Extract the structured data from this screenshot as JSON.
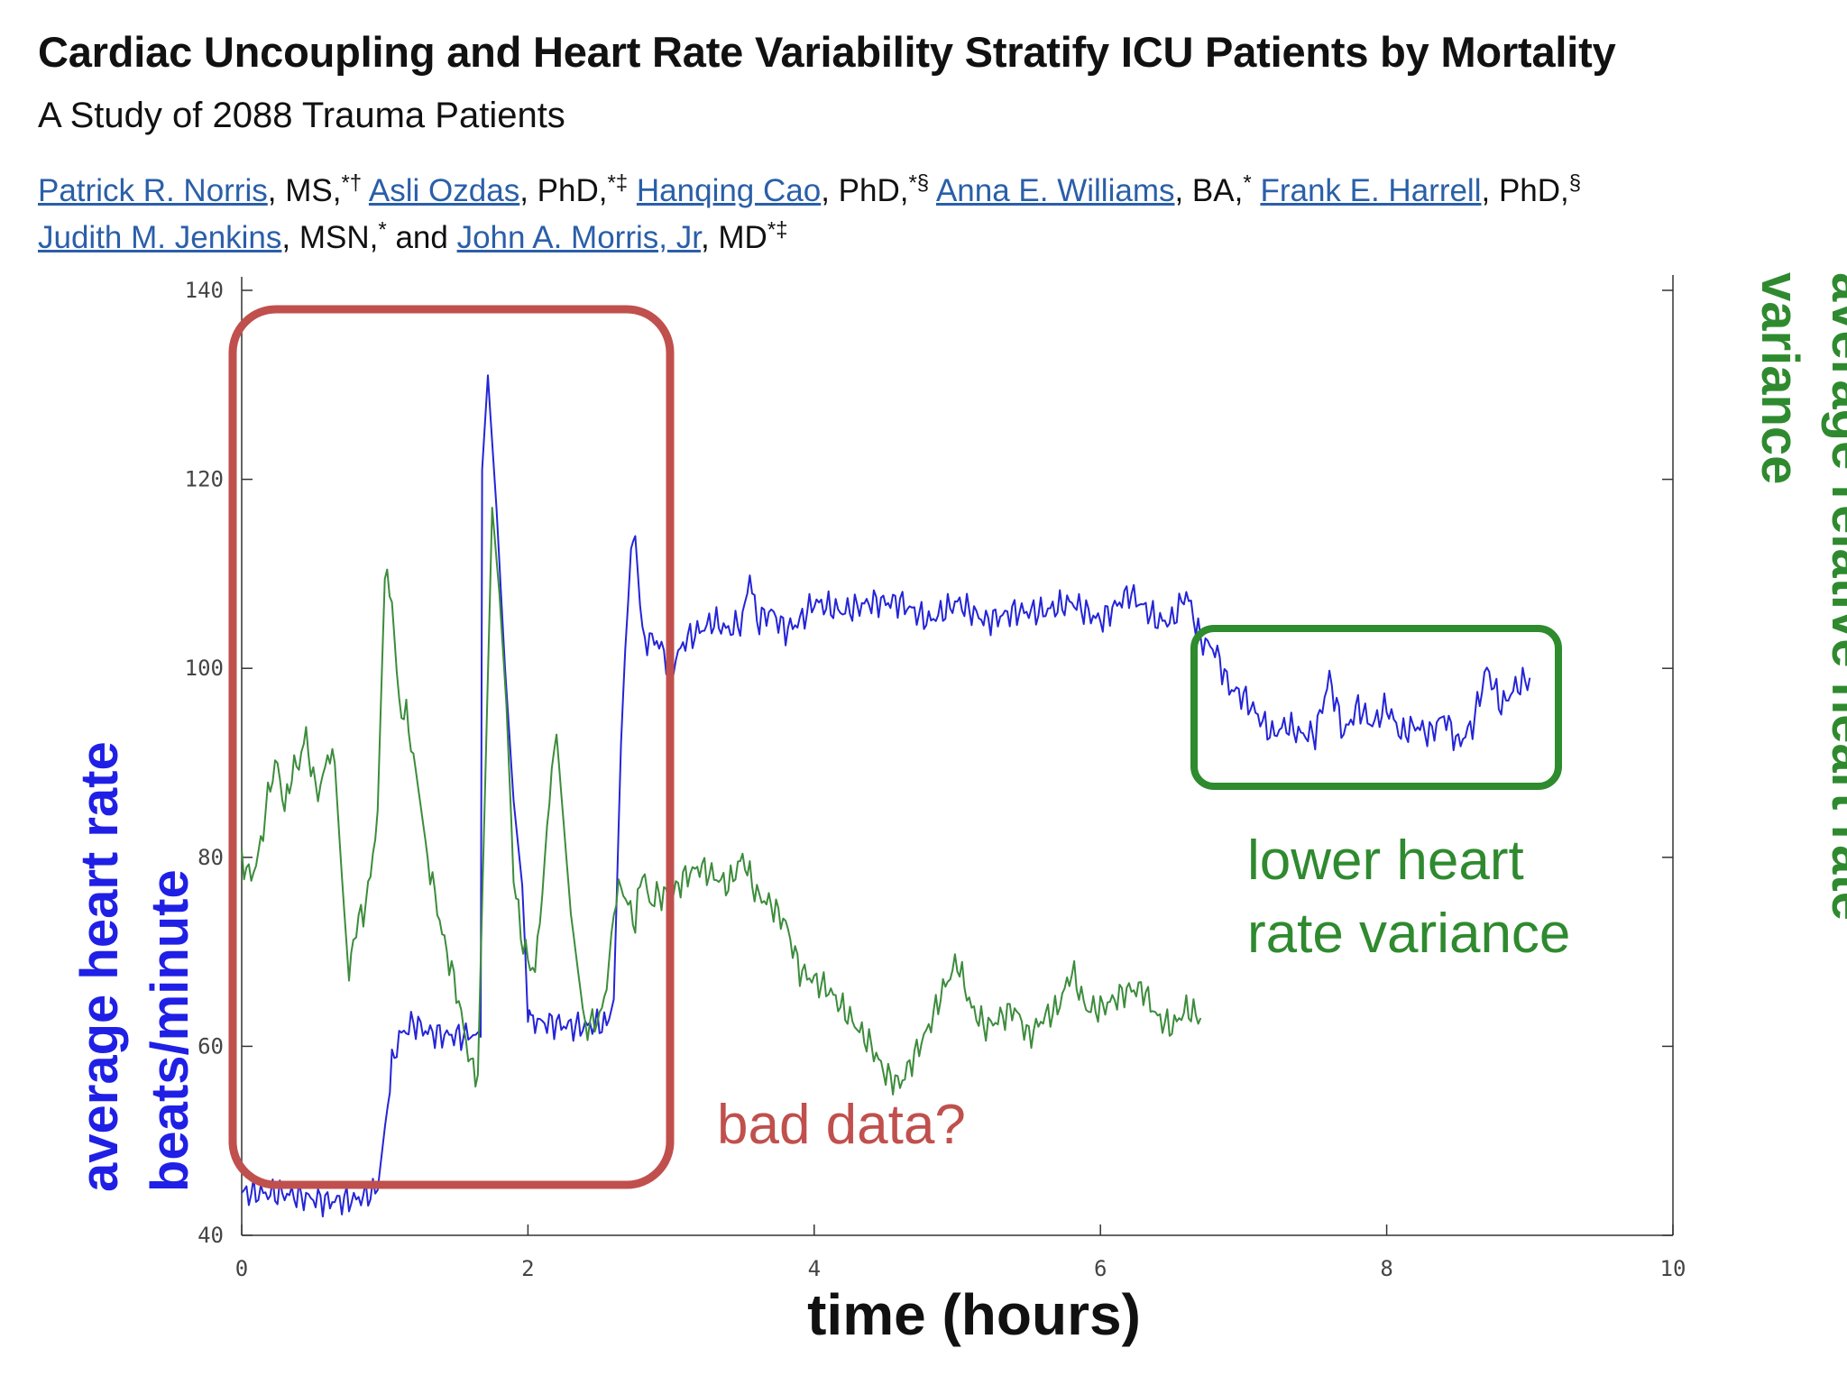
{
  "paper": {
    "title": "Cardiac Uncoupling and Heart Rate Variability Stratify ICU Patients by Mortality",
    "subtitle": "A Study of 2088 Trauma Patients",
    "authors": [
      {
        "name": "Patrick R. Norris",
        "degree": ", MS,",
        "marks": "*†"
      },
      {
        "name": "Asli Ozdas",
        "degree": ", PhD,",
        "marks": "*‡"
      },
      {
        "name": "Hanqing Cao",
        "degree": ", PhD,",
        "marks": "*§"
      },
      {
        "name": "Anna E. Williams",
        "degree": ", BA,",
        "marks": "*"
      },
      {
        "name": "Frank E. Harrell",
        "degree": ", PhD,",
        "marks": "§"
      },
      {
        "name": "Judith M. Jenkins",
        "degree": ", MSN,",
        "marks": "*"
      },
      {
        "name": "John A. Morris, Jr",
        "degree": ", MD",
        "marks": "*‡"
      }
    ],
    "and_word": "and"
  },
  "chart_data": {
    "type": "line",
    "x_range": [
      0,
      10
    ],
    "x_ticks": [
      "0",
      "2",
      "4",
      "6",
      "8",
      "10"
    ],
    "y_range": [
      40,
      140
    ],
    "y_ticks": [
      "40",
      "60",
      "80",
      "100",
      "120",
      "140"
    ],
    "xlabel": "time (hours)",
    "ylabel_left": [
      "average heart rate",
      "beats/minute"
    ],
    "ylabel_right": [
      "average relative heart rate",
      "variance"
    ],
    "series": [
      {
        "name": "average heart rate",
        "color": "#2424d8",
        "points": [
          [
            0,
            44.5
          ],
          [
            0.3,
            44.4
          ],
          [
            0.6,
            43.6
          ],
          [
            0.8,
            43.8
          ],
          [
            0.95,
            44.8
          ],
          [
            1.02,
            54
          ],
          [
            1.05,
            58
          ],
          [
            1.1,
            61
          ],
          [
            1.2,
            62.5
          ],
          [
            1.3,
            61.5
          ],
          [
            1.4,
            61.2
          ],
          [
            1.5,
            61.1
          ],
          [
            1.6,
            61.2
          ],
          [
            1.67,
            61
          ],
          [
            1.68,
            121
          ],
          [
            1.72,
            131
          ],
          [
            1.78,
            117
          ],
          [
            1.84,
            100
          ],
          [
            1.9,
            86
          ],
          [
            1.96,
            77
          ],
          [
            2.0,
            64
          ],
          [
            2.02,
            62.4
          ],
          [
            2.05,
            62.7
          ],
          [
            2.1,
            62.5
          ],
          [
            2.2,
            62.4
          ],
          [
            2.3,
            62.1
          ],
          [
            2.4,
            62.1
          ],
          [
            2.5,
            62.4
          ],
          [
            2.55,
            62.3
          ],
          [
            2.6,
            65
          ],
          [
            2.65,
            92
          ],
          [
            2.68,
            102
          ],
          [
            2.72,
            112
          ],
          [
            2.75,
            114
          ],
          [
            2.8,
            103
          ],
          [
            2.9,
            103
          ],
          [
            3.0,
            100
          ],
          [
            3.1,
            103
          ],
          [
            3.2,
            104
          ],
          [
            3.3,
            105
          ],
          [
            3.4,
            104
          ],
          [
            3.5,
            105
          ],
          [
            3.55,
            110
          ],
          [
            3.6,
            105
          ],
          [
            3.7,
            106
          ],
          [
            3.8,
            104
          ],
          [
            3.9,
            105
          ],
          [
            4.0,
            107
          ],
          [
            4.2,
            106
          ],
          [
            4.4,
            107
          ],
          [
            4.6,
            107
          ],
          [
            4.8,
            105
          ],
          [
            5.0,
            107
          ],
          [
            5.2,
            105
          ],
          [
            5.4,
            106
          ],
          [
            5.6,
            106
          ],
          [
            5.8,
            107
          ],
          [
            6.0,
            105
          ],
          [
            6.2,
            108
          ],
          [
            6.4,
            105
          ],
          [
            6.5,
            105
          ],
          [
            6.6,
            108
          ],
          [
            6.7,
            103
          ],
          [
            6.8,
            102
          ],
          [
            6.9,
            98
          ],
          [
            7.0,
            97
          ],
          [
            7.1,
            95
          ],
          [
            7.2,
            93
          ],
          [
            7.3,
            94
          ],
          [
            7.4,
            93
          ],
          [
            7.5,
            93
          ],
          [
            7.6,
            99
          ],
          [
            7.7,
            93
          ],
          [
            7.8,
            96
          ],
          [
            7.9,
            94
          ],
          [
            8.0,
            96
          ],
          [
            8.1,
            93
          ],
          [
            8.2,
            94
          ],
          [
            8.3,
            93
          ],
          [
            8.4,
            95
          ],
          [
            8.5,
            92
          ],
          [
            8.55,
            93
          ],
          [
            8.6,
            94
          ],
          [
            8.7,
            100
          ],
          [
            8.8,
            96
          ],
          [
            8.9,
            98
          ],
          [
            9.0,
            99
          ]
        ]
      },
      {
        "name": "average relative heart rate variance",
        "color": "#3c8c3c",
        "points": [
          [
            0,
            80
          ],
          [
            0.05,
            78
          ],
          [
            0.1,
            79
          ],
          [
            0.15,
            83
          ],
          [
            0.2,
            88
          ],
          [
            0.25,
            90
          ],
          [
            0.3,
            85
          ],
          [
            0.35,
            89
          ],
          [
            0.4,
            90
          ],
          [
            0.45,
            93
          ],
          [
            0.5,
            88
          ],
          [
            0.55,
            87
          ],
          [
            0.6,
            91
          ],
          [
            0.65,
            90
          ],
          [
            0.7,
            78
          ],
          [
            0.75,
            67
          ],
          [
            0.78,
            71
          ],
          [
            0.8,
            73
          ],
          [
            0.85,
            74
          ],
          [
            0.9,
            78
          ],
          [
            0.95,
            85
          ],
          [
            1.0,
            110
          ],
          [
            1.05,
            107
          ],
          [
            1.1,
            96
          ],
          [
            1.15,
            95
          ],
          [
            1.2,
            91
          ],
          [
            1.3,
            80
          ],
          [
            1.4,
            72
          ],
          [
            1.5,
            66
          ],
          [
            1.6,
            58
          ],
          [
            1.65,
            57
          ],
          [
            1.7,
            87
          ],
          [
            1.75,
            117
          ],
          [
            1.8,
            108
          ],
          [
            1.85,
            96
          ],
          [
            1.9,
            78
          ],
          [
            1.95,
            72
          ],
          [
            2.0,
            69
          ],
          [
            2.05,
            68
          ],
          [
            2.1,
            76
          ],
          [
            2.15,
            87
          ],
          [
            2.2,
            93
          ],
          [
            2.3,
            74
          ],
          [
            2.4,
            62
          ],
          [
            2.5,
            63
          ],
          [
            2.55,
            66
          ],
          [
            2.6,
            75
          ],
          [
            2.65,
            77
          ],
          [
            2.7,
            75
          ],
          [
            2.75,
            73
          ],
          [
            2.8,
            79
          ],
          [
            2.85,
            75
          ],
          [
            2.9,
            76
          ],
          [
            3.0,
            76
          ],
          [
            3.1,
            78
          ],
          [
            3.2,
            79
          ],
          [
            3.3,
            78
          ],
          [
            3.4,
            77
          ],
          [
            3.5,
            80
          ],
          [
            3.6,
            76
          ],
          [
            3.7,
            75
          ],
          [
            3.8,
            73
          ],
          [
            3.9,
            68
          ],
          [
            4.0,
            67
          ],
          [
            4.1,
            66
          ],
          [
            4.2,
            64
          ],
          [
            4.3,
            62
          ],
          [
            4.4,
            60
          ],
          [
            4.5,
            57
          ],
          [
            4.6,
            56
          ],
          [
            4.7,
            59
          ],
          [
            4.8,
            62
          ],
          [
            4.9,
            66
          ],
          [
            5.0,
            69
          ],
          [
            5.1,
            64
          ],
          [
            5.2,
            62
          ],
          [
            5.3,
            63
          ],
          [
            5.4,
            64
          ],
          [
            5.5,
            61
          ],
          [
            5.6,
            63
          ],
          [
            5.7,
            64
          ],
          [
            5.8,
            68
          ],
          [
            5.9,
            64
          ],
          [
            6.0,
            64
          ],
          [
            6.1,
            65
          ],
          [
            6.2,
            66
          ],
          [
            6.3,
            66
          ],
          [
            6.4,
            63
          ],
          [
            6.5,
            62
          ],
          [
            6.6,
            64
          ],
          [
            6.7,
            63
          ]
        ]
      }
    ],
    "annotations": {
      "bad_data": "bad data?",
      "lower_variance": [
        "lower heart",
        "rate variance"
      ]
    }
  }
}
